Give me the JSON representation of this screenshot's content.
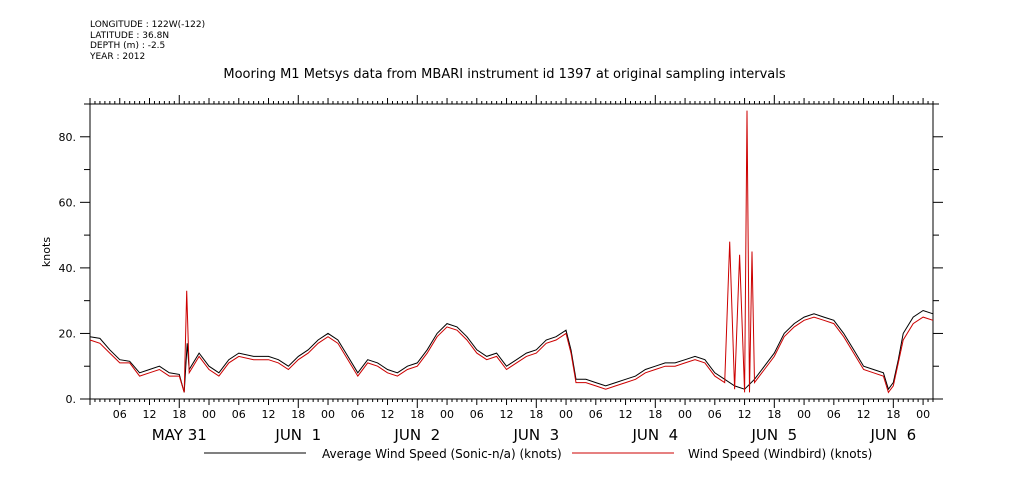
{
  "meta": {
    "longitude": "LONGITUDE : 122W(-122)",
    "latitude": "LATITUDE : 36.8N",
    "depth": "DEPTH (m) : -2.5",
    "year": "YEAR : 2012"
  },
  "chart_data": {
    "type": "line",
    "title": "Mooring M1 Metsys data from MBARI instrument id 1397 at original sampling intervals",
    "ylabel": "knots",
    "xlabel": "",
    "ylim": [
      0,
      90
    ],
    "yticks": [
      0,
      20,
      40,
      60,
      80
    ],
    "ytick_labels": [
      "0.",
      "20.",
      "40.",
      "60.",
      "80."
    ],
    "xlim_hours": [
      0,
      170
    ],
    "hour_labels": [
      "06",
      "12",
      "18",
      "00",
      "06",
      "12",
      "18",
      "00",
      "06",
      "12",
      "18",
      "00",
      "06",
      "12",
      "18",
      "00",
      "06",
      "12",
      "18",
      "00",
      "06",
      "12",
      "18",
      "00",
      "06",
      "12",
      "18",
      "00"
    ],
    "day_labels": [
      "MAY 31",
      "JUN  1",
      "JUN  2",
      "JUN  3",
      "JUN  4",
      "JUN  5",
      "JUN  6"
    ],
    "grid": false,
    "legend_position": "bottom",
    "series": [
      {
        "name": "Average Wind Speed (Sonic-n/a) (knots)",
        "color": "#000000",
        "points": [
          [
            0,
            19
          ],
          [
            2,
            18.5
          ],
          [
            4,
            15
          ],
          [
            6,
            12
          ],
          [
            8,
            11.5
          ],
          [
            10,
            8
          ],
          [
            12,
            9
          ],
          [
            14,
            10
          ],
          [
            16,
            8
          ],
          [
            18,
            7.5
          ],
          [
            19,
            2
          ],
          [
            19.6,
            17
          ],
          [
            20,
            9
          ],
          [
            22,
            14
          ],
          [
            24,
            10
          ],
          [
            26,
            8
          ],
          [
            28,
            12
          ],
          [
            30,
            14
          ],
          [
            33,
            13
          ],
          [
            36,
            13
          ],
          [
            38,
            12
          ],
          [
            40,
            10
          ],
          [
            42,
            13
          ],
          [
            44,
            15
          ],
          [
            46,
            18
          ],
          [
            48,
            20
          ],
          [
            50,
            18
          ],
          [
            52,
            13
          ],
          [
            54,
            8
          ],
          [
            56,
            12
          ],
          [
            58,
            11
          ],
          [
            60,
            9
          ],
          [
            62,
            8
          ],
          [
            64,
            10
          ],
          [
            66,
            11
          ],
          [
            68,
            15
          ],
          [
            70,
            20
          ],
          [
            72,
            23
          ],
          [
            74,
            22
          ],
          [
            76,
            19
          ],
          [
            78,
            15
          ],
          [
            80,
            13
          ],
          [
            82,
            14
          ],
          [
            84,
            10
          ],
          [
            86,
            12
          ],
          [
            88,
            14
          ],
          [
            90,
            15
          ],
          [
            92,
            18
          ],
          [
            94,
            19
          ],
          [
            96,
            21
          ],
          [
            97,
            15
          ],
          [
            98,
            6
          ],
          [
            100,
            6
          ],
          [
            102,
            5
          ],
          [
            104,
            4
          ],
          [
            106,
            5
          ],
          [
            108,
            6
          ],
          [
            110,
            7
          ],
          [
            112,
            9
          ],
          [
            114,
            10
          ],
          [
            116,
            11
          ],
          [
            118,
            11
          ],
          [
            120,
            12
          ],
          [
            122,
            13
          ],
          [
            124,
            12
          ],
          [
            126,
            8
          ],
          [
            128,
            6
          ],
          [
            130,
            4
          ],
          [
            132,
            3
          ],
          [
            134,
            6
          ],
          [
            136,
            10
          ],
          [
            138,
            14
          ],
          [
            140,
            20
          ],
          [
            142,
            23
          ],
          [
            144,
            25
          ],
          [
            146,
            26
          ],
          [
            148,
            25
          ],
          [
            150,
            24
          ],
          [
            152,
            20
          ],
          [
            154,
            15
          ],
          [
            156,
            10
          ],
          [
            158,
            9
          ],
          [
            160,
            8
          ],
          [
            161,
            3
          ],
          [
            162,
            5
          ],
          [
            163,
            12
          ],
          [
            164,
            20
          ],
          [
            166,
            25
          ],
          [
            168,
            27
          ],
          [
            170,
            26
          ]
        ]
      },
      {
        "name": "Wind Speed (Windbird) (knots)",
        "color": "#cc0000",
        "points": [
          [
            0,
            18
          ],
          [
            2,
            17
          ],
          [
            4,
            14
          ],
          [
            6,
            11
          ],
          [
            8,
            11
          ],
          [
            10,
            7
          ],
          [
            12,
            8
          ],
          [
            14,
            9
          ],
          [
            16,
            7
          ],
          [
            18,
            7
          ],
          [
            19,
            2
          ],
          [
            19.5,
            33
          ],
          [
            20,
            8
          ],
          [
            22,
            13
          ],
          [
            24,
            9
          ],
          [
            26,
            7
          ],
          [
            28,
            11
          ],
          [
            30,
            13
          ],
          [
            33,
            12
          ],
          [
            36,
            12
          ],
          [
            38,
            11
          ],
          [
            40,
            9
          ],
          [
            42,
            12
          ],
          [
            44,
            14
          ],
          [
            46,
            17
          ],
          [
            48,
            19
          ],
          [
            50,
            17
          ],
          [
            52,
            12
          ],
          [
            54,
            7
          ],
          [
            56,
            11
          ],
          [
            58,
            10
          ],
          [
            60,
            8
          ],
          [
            62,
            7
          ],
          [
            64,
            9
          ],
          [
            66,
            10
          ],
          [
            68,
            14
          ],
          [
            70,
            19
          ],
          [
            72,
            22
          ],
          [
            74,
            21
          ],
          [
            76,
            18
          ],
          [
            78,
            14
          ],
          [
            80,
            12
          ],
          [
            82,
            13
          ],
          [
            84,
            9
          ],
          [
            86,
            11
          ],
          [
            88,
            13
          ],
          [
            90,
            14
          ],
          [
            92,
            17
          ],
          [
            94,
            18
          ],
          [
            96,
            20
          ],
          [
            97,
            14
          ],
          [
            98,
            5
          ],
          [
            100,
            5
          ],
          [
            102,
            4
          ],
          [
            104,
            3
          ],
          [
            106,
            4
          ],
          [
            108,
            5
          ],
          [
            110,
            6
          ],
          [
            112,
            8
          ],
          [
            114,
            9
          ],
          [
            116,
            10
          ],
          [
            118,
            10
          ],
          [
            120,
            11
          ],
          [
            122,
            12
          ],
          [
            124,
            11
          ],
          [
            126,
            7
          ],
          [
            128,
            5
          ],
          [
            129,
            48
          ],
          [
            130,
            3
          ],
          [
            131,
            44
          ],
          [
            132,
            2
          ],
          [
            132.5,
            88
          ],
          [
            133,
            2
          ],
          [
            133.5,
            45
          ],
          [
            134,
            5
          ],
          [
            136,
            9
          ],
          [
            138,
            13
          ],
          [
            140,
            19
          ],
          [
            142,
            22
          ],
          [
            144,
            24
          ],
          [
            146,
            25
          ],
          [
            148,
            24
          ],
          [
            150,
            23
          ],
          [
            152,
            19
          ],
          [
            154,
            14
          ],
          [
            156,
            9
          ],
          [
            158,
            8
          ],
          [
            160,
            7
          ],
          [
            161,
            2
          ],
          [
            162,
            4
          ],
          [
            163,
            11
          ],
          [
            164,
            18
          ],
          [
            166,
            23
          ],
          [
            168,
            25
          ],
          [
            170,
            24
          ]
        ]
      }
    ]
  }
}
